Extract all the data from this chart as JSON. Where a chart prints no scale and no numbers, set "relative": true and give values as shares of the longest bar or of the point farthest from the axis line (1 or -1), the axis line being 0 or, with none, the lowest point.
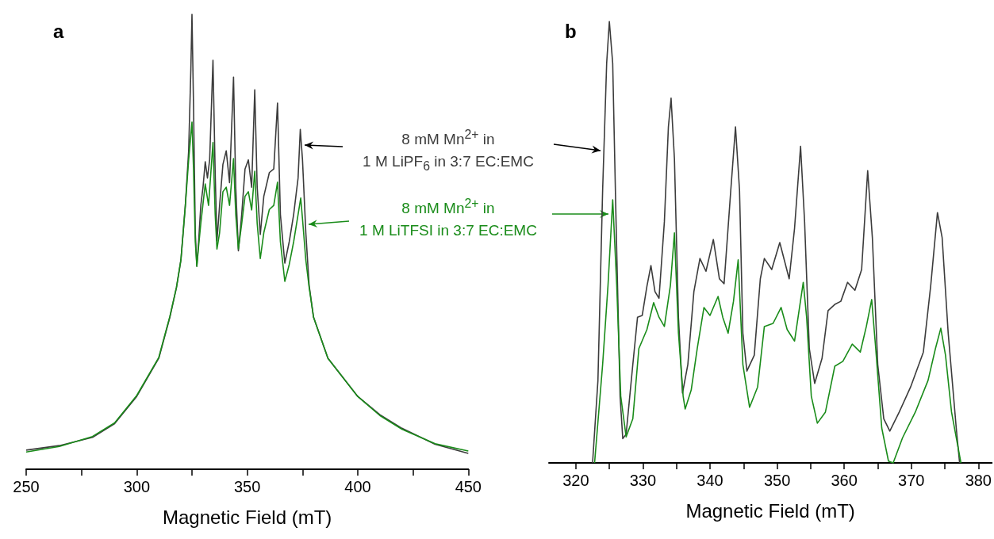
{
  "chart_data": [
    {
      "type": "line",
      "title": "a",
      "xlabel": "Magnetic Field (mT)",
      "relative": true,
      "xlim": [
        250,
        450
      ],
      "xticks": [
        250,
        {
          "value": 275,
          "label": null
        },
        300,
        {
          "value": 325,
          "label": null
        },
        350,
        {
          "value": 375,
          "label": null
        },
        400,
        {
          "value": 425,
          "label": null
        },
        450
      ],
      "annotations": [
        "8 mM Mn$^{2+}$ in\n1 M LiPF$_{6}$ in 3:7 EC:EMC",
        "8 mM Mn$^{2+}$ in\n1 M LiTFSI in 3:7 EC:EMC"
      ],
      "series": [
        {
          "color": "#3c3c3c",
          "x": [
            250,
            265,
            280,
            290,
            300,
            310,
            315,
            318,
            320,
            322,
            323.5,
            324.5,
            325,
            325.7,
            326.5,
            327.2,
            328,
            329,
            330,
            331,
            332,
            333,
            334.5,
            335.5,
            336.3,
            337.5,
            339,
            340.5,
            342,
            343.8,
            344.8,
            346,
            347.5,
            349,
            350.5,
            352,
            353.4,
            354.5,
            355.9,
            357.5,
            360,
            362,
            363.7,
            365,
            367,
            369,
            371,
            373,
            374,
            375,
            376.5,
            378,
            380,
            386.5,
            400,
            410,
            420,
            435,
            450
          ],
          "values": [
            0.042,
            0.052,
            0.07,
            0.1,
            0.16,
            0.244,
            0.334,
            0.4,
            0.46,
            0.58,
            0.7,
            0.88,
            1.0,
            0.8,
            0.52,
            0.446,
            0.5,
            0.58,
            0.62,
            0.676,
            0.64,
            0.68,
            0.899,
            0.65,
            0.502,
            0.58,
            0.67,
            0.7,
            0.63,
            0.862,
            0.62,
            0.48,
            0.56,
            0.66,
            0.68,
            0.62,
            0.834,
            0.62,
            0.516,
            0.6,
            0.652,
            0.66,
            0.805,
            0.56,
            0.453,
            0.5,
            0.56,
            0.64,
            0.747,
            0.68,
            0.52,
            0.404,
            0.334,
            0.244,
            0.16,
            0.12,
            0.09,
            0.055,
            0.035
          ]
        },
        {
          "color": "#1a8c1a",
          "x": [
            250,
            265,
            280,
            290,
            300,
            310,
            315,
            318,
            320,
            322,
            323.5,
            325,
            325.7,
            326.5,
            327.2,
            328,
            329,
            331,
            332.5,
            334.5,
            335.5,
            336.3,
            337.5,
            339,
            340.5,
            342,
            343.8,
            344.8,
            346,
            347.5,
            349,
            350.5,
            352,
            353.4,
            354.5,
            355.9,
            357.5,
            360,
            362,
            363.7,
            365,
            367,
            369,
            371,
            373,
            374.2,
            375,
            376.5,
            378,
            380,
            386.5,
            400,
            410,
            420,
            435,
            450
          ],
          "values": [
            0.038,
            0.05,
            0.072,
            0.102,
            0.162,
            0.246,
            0.336,
            0.4,
            0.46,
            0.58,
            0.68,
            0.763,
            0.66,
            0.5,
            0.446,
            0.49,
            0.54,
            0.627,
            0.58,
            0.718,
            0.56,
            0.484,
            0.52,
            0.61,
            0.62,
            0.58,
            0.683,
            0.56,
            0.484,
            0.54,
            0.6,
            0.61,
            0.57,
            0.655,
            0.54,
            0.463,
            0.52,
            0.571,
            0.58,
            0.631,
            0.5,
            0.413,
            0.45,
            0.5,
            0.56,
            0.596,
            0.55,
            0.46,
            0.4,
            0.334,
            0.244,
            0.16,
            0.118,
            0.088,
            0.056,
            0.04
          ]
        }
      ]
    },
    {
      "type": "line",
      "title": "b",
      "xlabel": "Magnetic Field (mT)",
      "relative": true,
      "xlim": [
        316,
        382
      ],
      "xticks": [
        320,
        {
          "value": 325,
          "label": null
        },
        330,
        {
          "value": 335,
          "label": null
        },
        340,
        {
          "value": 345,
          "label": null
        },
        350,
        {
          "value": 355,
          "label": null
        },
        360,
        {
          "value": 365,
          "label": null
        },
        370,
        {
          "value": 375,
          "label": null
        },
        380
      ],
      "series": [
        {
          "color": "#3c3c3c",
          "x": [
            322.5,
            323.3,
            324.0,
            324.6,
            325.0,
            325.5,
            326.0,
            326.6,
            327.0,
            327.5,
            328.5,
            329.2,
            329.9,
            330.6,
            331.2,
            331.8,
            332.4,
            333.2,
            333.8,
            334.2,
            334.7,
            335.3,
            335.9,
            336.7,
            337.6,
            338.5,
            339.4,
            340.5,
            341.4,
            342.1,
            343.1,
            343.8,
            344.4,
            344.9,
            345.5,
            346.6,
            347.5,
            348.1,
            349.2,
            350.4,
            351.8,
            352.6,
            353.5,
            354.1,
            354.8,
            355.6,
            356.7,
            357.6,
            358.6,
            359.5,
            360.5,
            361.6,
            362.6,
            363.5,
            364.2,
            365.0,
            365.9,
            366.8,
            368.2,
            369.9,
            371.8,
            372.9,
            373.9,
            374.6,
            375.5,
            376.7,
            377.2
          ],
          "values": [
            0,
            0.187,
            0.618,
            0.905,
            1.0,
            0.905,
            0.546,
            0.151,
            0.055,
            0.065,
            0.223,
            0.33,
            0.334,
            0.4,
            0.447,
            0.388,
            0.373,
            0.546,
            0.761,
            0.826,
            0.689,
            0.33,
            0.158,
            0.223,
            0.388,
            0.463,
            0.434,
            0.506,
            0.417,
            0.406,
            0.618,
            0.761,
            0.618,
            0.294,
            0.208,
            0.244,
            0.417,
            0.463,
            0.438,
            0.499,
            0.417,
            0.531,
            0.717,
            0.546,
            0.259,
            0.18,
            0.237,
            0.345,
            0.359,
            0.366,
            0.409,
            0.391,
            0.438,
            0.662,
            0.51,
            0.223,
            0.1,
            0.072,
            0.115,
            0.172,
            0.251,
            0.402,
            0.567,
            0.51,
            0.294,
            0.079,
            0
          ]
        },
        {
          "color": "#1a8c1a",
          "x": [
            322.8,
            324.0,
            324.8,
            325.5,
            326.1,
            326.7,
            327.5,
            328.5,
            329.4,
            330.6,
            331.6,
            332.4,
            333.2,
            334.1,
            334.7,
            335.3,
            336.0,
            336.3,
            337.2,
            338.1,
            339.1,
            340.0,
            341.2,
            341.9,
            342.7,
            343.5,
            344.2,
            344.9,
            345.9,
            347.1,
            348.1,
            349.4,
            350.6,
            351.5,
            352.6,
            353.9,
            354.4,
            355.1,
            356.0,
            357.2,
            358.6,
            359.8,
            361.2,
            362.4,
            363.3,
            364.1,
            364.7,
            365.6,
            366.6,
            367.3,
            368.7,
            370.6,
            372.5,
            373.6,
            374.4,
            375.1,
            376.0,
            377.4
          ],
          "values": [
            0,
            0.223,
            0.402,
            0.596,
            0.402,
            0.151,
            0.059,
            0.1,
            0.259,
            0.302,
            0.363,
            0.33,
            0.309,
            0.402,
            0.521,
            0.294,
            0.151,
            0.122,
            0.165,
            0.259,
            0.352,
            0.334,
            0.377,
            0.33,
            0.294,
            0.366,
            0.46,
            0.223,
            0.126,
            0.172,
            0.309,
            0.316,
            0.352,
            0.302,
            0.276,
            0.409,
            0.33,
            0.151,
            0.09,
            0.115,
            0.219,
            0.23,
            0.269,
            0.251,
            0.309,
            0.37,
            0.259,
            0.079,
            0.004,
            0,
            0.057,
            0.115,
            0.187,
            0.259,
            0.305,
            0.244,
            0.115,
            0
          ]
        }
      ]
    }
  ]
}
